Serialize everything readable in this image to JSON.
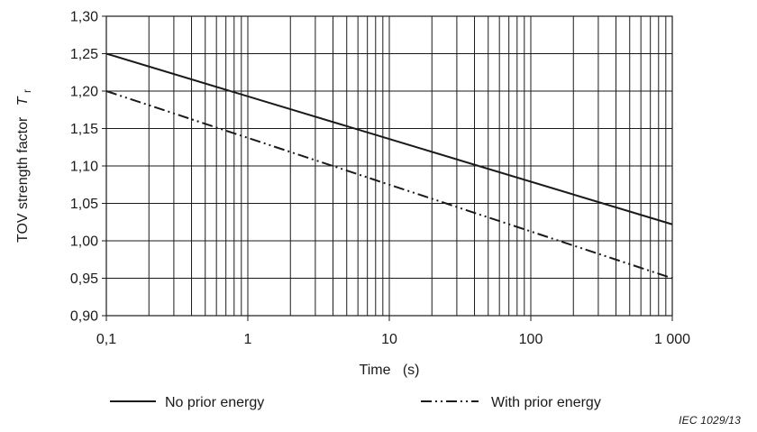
{
  "chart_data": {
    "type": "line",
    "x_scale": "log",
    "xlabel": "Time   (s)",
    "ylabel": "TOV strength factor",
    "ylabel_symbol": "T",
    "ylabel_subscript": "r",
    "xlim": [
      0.1,
      1000
    ],
    "ylim": [
      0.9,
      1.3
    ],
    "grid": true,
    "x_ticks": [
      0.1,
      1,
      10,
      100,
      1000
    ],
    "x_tick_labels": [
      "0,1",
      "1",
      "10",
      "100",
      "1 000"
    ],
    "y_ticks": [
      0.9,
      0.95,
      1.0,
      1.05,
      1.1,
      1.15,
      1.2,
      1.25,
      1.3
    ],
    "y_tick_labels": [
      "0,90",
      "0,95",
      "1,00",
      "1,05",
      "1,10",
      "1,15",
      "1,20",
      "1,25",
      "1,30"
    ],
    "series": [
      {
        "name": "No prior energy",
        "style": "solid",
        "color": "#1a1a1a",
        "x": [
          0.1,
          1000
        ],
        "y": [
          1.25,
          1.022
        ]
      },
      {
        "name": "With prior energy",
        "style": "dash-dot-dot",
        "color": "#1a1a1a",
        "x": [
          0.1,
          1000
        ],
        "y": [
          1.2,
          0.95
        ]
      }
    ],
    "legend_position": "bottom"
  },
  "credit": "IEC   1029/13"
}
